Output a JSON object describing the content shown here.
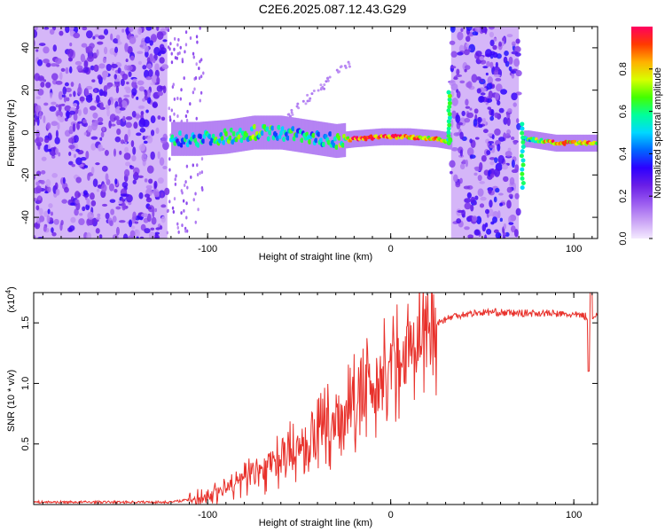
{
  "title": "C2E6.2025.087.12.43.G29",
  "chart_data": [
    {
      "type": "heatmap",
      "xlabel": "Height of straight line (km)",
      "ylabel": "Frequency (Hz)",
      "xlim": [
        -195,
        113
      ],
      "ylim": [
        -50,
        50
      ],
      "xticks": [
        -100,
        0,
        100
      ],
      "yticks": [
        -40,
        -20,
        0,
        20,
        40
      ],
      "colorbar": {
        "label": "Normalized spectral amplitude",
        "range": [
          0,
          1
        ],
        "ticks": [
          "0.0",
          "0.2",
          "0.4",
          "0.6",
          "0.8"
        ],
        "colors": [
          "#f4eaff",
          "#c9a2f5",
          "#9b5cf0",
          "#6a1fe6",
          "#2d00ff",
          "#0066ff",
          "#00d8ff",
          "#00ff9a",
          "#44ff00",
          "#d8ff00",
          "#ffb000",
          "#ff3a00",
          "#ff0060"
        ]
      },
      "ridge": [
        {
          "x": -120,
          "f": -3,
          "a": 0.45
        },
        {
          "x": -105,
          "f": -3,
          "a": 0.5
        },
        {
          "x": -90,
          "f": -2,
          "a": 0.55
        },
        {
          "x": -75,
          "f": 0,
          "a": 0.6
        },
        {
          "x": -60,
          "f": 0,
          "a": 0.55
        },
        {
          "x": -45,
          "f": -2,
          "a": 0.5
        },
        {
          "x": -30,
          "f": -4,
          "a": 0.55
        },
        {
          "x": -20,
          "f": -3,
          "a": 0.9
        },
        {
          "x": -5,
          "f": -2,
          "a": 0.9
        },
        {
          "x": 10,
          "f": -2,
          "a": 0.85
        },
        {
          "x": 25,
          "f": -3,
          "a": 0.75
        },
        {
          "x": 32,
          "f": -4,
          "a": 0.6
        },
        {
          "x": 75,
          "f": -3,
          "a": 0.55
        },
        {
          "x": 90,
          "f": -5,
          "a": 0.85
        },
        {
          "x": 113,
          "f": -5,
          "a": 0.8
        }
      ]
    },
    {
      "type": "line",
      "xlabel": "Height of straight line (km)",
      "ylabel": "SNR (10 * v/v)",
      "y_multiplier": "(x10",
      "y_multiplier_exp": "4",
      "xlim": [
        -195,
        113
      ],
      "ylim": [
        0,
        1.75
      ],
      "xticks": [
        -100,
        0,
        100
      ],
      "yticks": [
        0.5,
        1.0,
        1.5
      ],
      "ytick_labels": [
        "0.5",
        "1.0",
        "1.5"
      ],
      "color": "#e8302a",
      "series": [
        {
          "x": [
            -195,
            -160,
            -120,
            -105,
            -95,
            -85,
            -75,
            -65,
            -55,
            -45,
            -35,
            -25,
            -15,
            -5,
            5,
            15,
            25,
            35,
            45,
            55,
            65,
            75,
            85,
            95,
            105,
            108,
            113
          ],
          "y": [
            0.02,
            0.02,
            0.02,
            0.05,
            0.1,
            0.17,
            0.25,
            0.33,
            0.42,
            0.52,
            0.62,
            0.75,
            0.88,
            1.05,
            1.22,
            1.38,
            1.5,
            1.56,
            1.58,
            1.59,
            1.58,
            1.58,
            1.58,
            1.57,
            1.56,
            1.55,
            1.57
          ]
        }
      ]
    }
  ]
}
